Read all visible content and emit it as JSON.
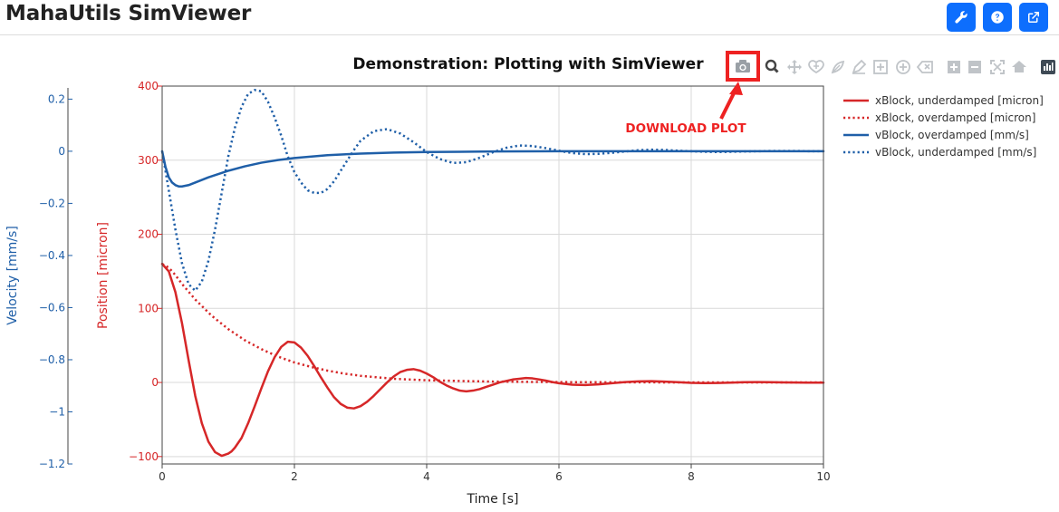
{
  "app": {
    "title": "MahaUtils SimViewer"
  },
  "header_buttons": [
    {
      "name": "wrench-icon",
      "color": "#0d6efd"
    },
    {
      "name": "help-icon",
      "color": "#0d6efd"
    },
    {
      "name": "external-link-icon",
      "color": "#0d6efd"
    }
  ],
  "modebar": {
    "icons": [
      "camera-icon",
      "zoom-icon",
      "pan-icon",
      "lasso-select-icon",
      "box-select-icon",
      "draw-open-path-icon",
      "draw-closed-path-icon",
      "draw-circle-icon",
      "erase-shape-icon",
      "zoom-in-icon",
      "zoom-out-icon",
      "autoscale-icon",
      "reset-axes-icon",
      "plotly-logo-icon"
    ],
    "highlight": "camera-icon",
    "annotation": "DOWNLOAD PLOT",
    "annotation_color": "#ee2222"
  },
  "chart_data": {
    "type": "line",
    "title": "Demonstration: Plotting with SimViewer",
    "xlabel": "Time [s]",
    "xlim": [
      0,
      10
    ],
    "xticks": [
      "0",
      "2",
      "4",
      "6",
      "8",
      "10"
    ],
    "y_left": {
      "label": "Position [micron]",
      "color": "#d62728",
      "ylim": [
        -110,
        400
      ],
      "ticks": [
        "400",
        "300",
        "200",
        "100",
        "0",
        "−100"
      ]
    },
    "y_outer": {
      "label": "Velocity [mm/s]",
      "color": "#1f5fa8",
      "ylim": [
        -1.2,
        0.25
      ],
      "ticks": [
        "0.2",
        "0",
        "−0.2",
        "−0.4",
        "−0.6",
        "−0.8",
        "−1",
        "−1.2"
      ]
    },
    "grid": true,
    "legend_position": "top-right",
    "series": [
      {
        "name": "xBlock, underdamped [micron]",
        "axis": "left",
        "color": "#d62728",
        "dash": "solid",
        "x": [
          0,
          0.1,
          0.2,
          0.3,
          0.4,
          0.5,
          0.6,
          0.7,
          0.8,
          0.9,
          1.0,
          1.05,
          1.1,
          1.2,
          1.3,
          1.4,
          1.5,
          1.6,
          1.7,
          1.8,
          1.9,
          2.0,
          2.1,
          2.2,
          2.3,
          2.4,
          2.5,
          2.6,
          2.7,
          2.8,
          2.9,
          3.0,
          3.1,
          3.2,
          3.3,
          3.4,
          3.5,
          3.6,
          3.7,
          3.8,
          3.9,
          4.0,
          4.1,
          4.2,
          4.3,
          4.4,
          4.5,
          4.6,
          4.7,
          4.8,
          4.9,
          5.0,
          5.1,
          5.2,
          5.3,
          5.4,
          5.5,
          5.6,
          5.7,
          5.8,
          5.9,
          6.0,
          6.2,
          6.4,
          6.6,
          6.8,
          7.0,
          7.2,
          7.4,
          7.6,
          7.8,
          8.0,
          8.2,
          8.4,
          8.6,
          8.8,
          9.0,
          9.2,
          9.4,
          9.6,
          9.8,
          10.0
        ],
        "y": [
          160,
          150,
          122,
          80,
          30,
          -18,
          -55,
          -80,
          -94,
          -99,
          -96,
          -93,
          -88,
          -75,
          -55,
          -32,
          -8,
          15,
          34,
          48,
          55,
          54,
          47,
          36,
          22,
          7,
          -7,
          -20,
          -29,
          -34,
          -35,
          -32,
          -26,
          -18,
          -9,
          0,
          8,
          14,
          17,
          18,
          16,
          12,
          7,
          1,
          -4,
          -8,
          -11,
          -12,
          -11,
          -9,
          -6,
          -3,
          0,
          2,
          4,
          5,
          6,
          5.5,
          4,
          2.5,
          0.5,
          -1,
          -3,
          -3.5,
          -2.5,
          -1,
          0.5,
          1.5,
          1.8,
          1.2,
          0.3,
          -0.5,
          -0.9,
          -0.7,
          -0.2,
          0.3,
          0.5,
          0.4,
          0.1,
          -0.1,
          -0.2,
          -0.2
        ]
      },
      {
        "name": "xBlock, overdamped [micron]",
        "axis": "left",
        "color": "#d62728",
        "dash": "dot",
        "x": [
          0,
          0.1,
          0.2,
          0.3,
          0.5,
          0.75,
          1.0,
          1.25,
          1.5,
          1.75,
          2.0,
          2.25,
          2.5,
          2.75,
          3.0,
          3.25,
          3.5,
          4.0,
          4.5,
          5.0,
          5.5,
          6.0,
          7.0,
          8.0,
          9.0,
          10.0
        ],
        "y": [
          160,
          155,
          145,
          133,
          112,
          90,
          72,
          57,
          45,
          35,
          27,
          21,
          16,
          12,
          9,
          7,
          5,
          3,
          2,
          1.2,
          0.8,
          0.5,
          0.2,
          0.1,
          0,
          0
        ]
      },
      {
        "name": "vBlock, overdamped [mm/s]",
        "axis": "outer",
        "color": "#1f5fa8",
        "dash": "solid",
        "x": [
          0,
          0.05,
          0.1,
          0.15,
          0.2,
          0.25,
          0.3,
          0.4,
          0.5,
          0.7,
          1.0,
          1.25,
          1.5,
          1.75,
          2.0,
          2.5,
          3.0,
          3.5,
          4.0,
          5.0,
          6.0,
          7.0,
          8.0,
          9.0,
          10.0
        ],
        "y": [
          0,
          -0.06,
          -0.1,
          -0.12,
          -0.13,
          -0.135,
          -0.135,
          -0.13,
          -0.12,
          -0.1,
          -0.075,
          -0.058,
          -0.044,
          -0.034,
          -0.026,
          -0.015,
          -0.009,
          -0.005,
          -0.003,
          -0.001,
          0,
          0,
          0,
          0,
          0
        ]
      },
      {
        "name": "vBlock, underdamped [mm/s]",
        "axis": "outer",
        "color": "#1f5fa8",
        "dash": "dot",
        "x": [
          0,
          0.1,
          0.2,
          0.3,
          0.4,
          0.5,
          0.6,
          0.7,
          0.8,
          0.9,
          1.0,
          1.1,
          1.2,
          1.3,
          1.4,
          1.5,
          1.6,
          1.7,
          1.8,
          1.9,
          2.0,
          2.1,
          2.2,
          2.3,
          2.4,
          2.5,
          2.6,
          2.7,
          2.8,
          2.9,
          3.0,
          3.2,
          3.4,
          3.6,
          3.8,
          4.0,
          4.2,
          4.4,
          4.6,
          4.8,
          5.0,
          5.2,
          5.4,
          5.6,
          5.8,
          6.0,
          6.2,
          6.4,
          6.6,
          6.8,
          7.0,
          7.2,
          7.4,
          7.6,
          7.8,
          8.0,
          8.2,
          8.4,
          8.6,
          8.8,
          9.0,
          9.2,
          9.4,
          9.6,
          9.8,
          10.0
        ],
        "y": [
          0,
          -0.15,
          -0.3,
          -0.43,
          -0.51,
          -0.535,
          -0.5,
          -0.42,
          -0.3,
          -0.16,
          -0.02,
          0.09,
          0.17,
          0.22,
          0.235,
          0.23,
          0.19,
          0.13,
          0.06,
          -0.02,
          -0.08,
          -0.12,
          -0.15,
          -0.16,
          -0.16,
          -0.145,
          -0.115,
          -0.075,
          -0.035,
          0.005,
          0.04,
          0.077,
          0.085,
          0.068,
          0.035,
          -0.003,
          -0.03,
          -0.045,
          -0.042,
          -0.025,
          -0.004,
          0.013,
          0.022,
          0.02,
          0.012,
          0.002,
          -0.007,
          -0.011,
          -0.01,
          -0.006,
          -0.001,
          0.004,
          0.006,
          0.005,
          0.002,
          0,
          -0.002,
          -0.003,
          -0.002,
          -0.001,
          0,
          0.001,
          0.001,
          0.001,
          0,
          0
        ]
      }
    ]
  }
}
